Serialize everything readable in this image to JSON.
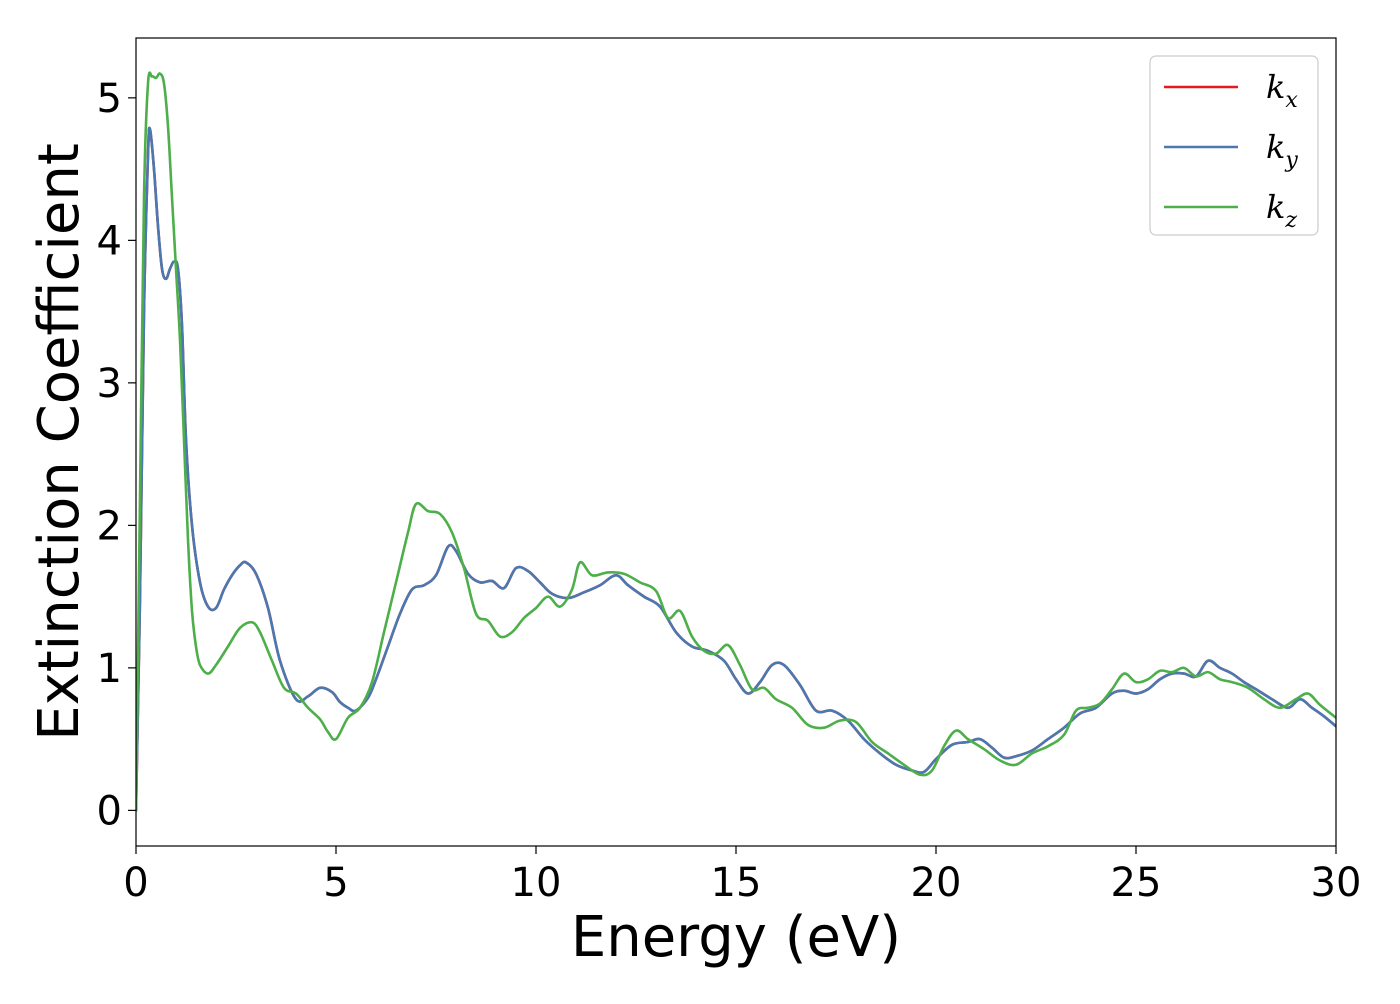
{
  "chart_data": {
    "type": "line",
    "title": "",
    "xlabel": "Energy (eV)",
    "ylabel": "Extinction Coefficient",
    "xlim": [
      0,
      30
    ],
    "ylim": [
      -0.25,
      5.42
    ],
    "xticks": [
      0,
      5,
      10,
      15,
      20,
      25,
      30
    ],
    "yticks": [
      0,
      1,
      2,
      3,
      4,
      5
    ],
    "grid": false,
    "legend_position": "top-right",
    "series": [
      {
        "name": "k_x",
        "label_main": "k",
        "label_sub": "x",
        "color": "#e41a1c",
        "x": [
          0,
          0.1,
          0.2,
          0.3,
          0.35,
          0.45,
          0.55,
          0.65,
          0.75,
          0.85,
          0.95,
          1.05,
          1.15,
          1.25,
          1.4,
          1.6,
          1.8,
          2.0,
          2.2,
          2.4,
          2.6,
          2.75,
          3.0,
          3.3,
          3.6,
          4.0,
          4.3,
          4.6,
          4.9,
          5.1,
          5.3,
          5.5,
          5.8,
          6.0,
          6.3,
          6.6,
          6.9,
          7.2,
          7.5,
          7.8,
          8.0,
          8.3,
          8.6,
          8.9,
          9.2,
          9.5,
          9.8,
          10.1,
          10.4,
          10.8,
          11.2,
          11.6,
          12.0,
          12.3,
          12.7,
          13.1,
          13.5,
          13.9,
          14.3,
          14.7,
          15.0,
          15.3,
          15.6,
          15.9,
          16.2,
          16.6,
          17.0,
          17.4,
          17.8,
          18.2,
          18.6,
          19.0,
          19.4,
          19.7,
          20.0,
          20.4,
          20.8,
          21.1,
          21.4,
          21.7,
          22.0,
          22.4,
          22.8,
          23.2,
          23.6,
          24.0,
          24.4,
          24.7,
          25.0,
          25.3,
          25.6,
          25.9,
          26.2,
          26.5,
          26.8,
          27.1,
          27.4,
          27.7,
          28.0,
          28.4,
          28.8,
          29.1,
          29.4,
          29.7,
          30.0
        ],
        "y": [
          0.0,
          1.5,
          3.5,
          4.6,
          4.78,
          4.5,
          4.1,
          3.8,
          3.73,
          3.8,
          3.85,
          3.8,
          3.4,
          2.6,
          2.0,
          1.6,
          1.43,
          1.42,
          1.55,
          1.65,
          1.72,
          1.74,
          1.66,
          1.42,
          1.05,
          0.78,
          0.8,
          0.86,
          0.83,
          0.76,
          0.72,
          0.7,
          0.79,
          0.92,
          1.15,
          1.38,
          1.55,
          1.58,
          1.65,
          1.85,
          1.82,
          1.66,
          1.6,
          1.61,
          1.56,
          1.7,
          1.68,
          1.6,
          1.52,
          1.49,
          1.53,
          1.58,
          1.65,
          1.58,
          1.5,
          1.43,
          1.25,
          1.15,
          1.12,
          1.05,
          0.92,
          0.82,
          0.9,
          1.02,
          1.02,
          0.88,
          0.7,
          0.7,
          0.63,
          0.5,
          0.4,
          0.32,
          0.28,
          0.27,
          0.36,
          0.46,
          0.48,
          0.5,
          0.44,
          0.37,
          0.38,
          0.42,
          0.5,
          0.58,
          0.68,
          0.72,
          0.82,
          0.84,
          0.82,
          0.85,
          0.92,
          0.96,
          0.96,
          0.94,
          1.05,
          1.0,
          0.96,
          0.9,
          0.85,
          0.78,
          0.72,
          0.78,
          0.72,
          0.66,
          0.59
        ]
      },
      {
        "name": "k_y",
        "label_main": "k",
        "label_sub": "y",
        "color": "#4a78b0",
        "x": [
          0,
          0.1,
          0.2,
          0.3,
          0.35,
          0.45,
          0.55,
          0.65,
          0.75,
          0.85,
          0.95,
          1.05,
          1.15,
          1.25,
          1.4,
          1.6,
          1.8,
          2.0,
          2.2,
          2.4,
          2.6,
          2.75,
          3.0,
          3.3,
          3.6,
          4.0,
          4.3,
          4.6,
          4.9,
          5.1,
          5.3,
          5.5,
          5.8,
          6.0,
          6.3,
          6.6,
          6.9,
          7.2,
          7.5,
          7.8,
          8.0,
          8.3,
          8.6,
          8.9,
          9.2,
          9.5,
          9.8,
          10.1,
          10.4,
          10.8,
          11.2,
          11.6,
          12.0,
          12.3,
          12.7,
          13.1,
          13.5,
          13.9,
          14.3,
          14.7,
          15.0,
          15.3,
          15.6,
          15.9,
          16.2,
          16.6,
          17.0,
          17.4,
          17.8,
          18.2,
          18.6,
          19.0,
          19.4,
          19.7,
          20.0,
          20.4,
          20.8,
          21.1,
          21.4,
          21.7,
          22.0,
          22.4,
          22.8,
          23.2,
          23.6,
          24.0,
          24.4,
          24.7,
          25.0,
          25.3,
          25.6,
          25.9,
          26.2,
          26.5,
          26.8,
          27.1,
          27.4,
          27.7,
          28.0,
          28.4,
          28.8,
          29.1,
          29.4,
          29.7,
          30.0
        ],
        "y": [
          0.0,
          1.5,
          3.5,
          4.6,
          4.78,
          4.5,
          4.1,
          3.8,
          3.73,
          3.8,
          3.85,
          3.8,
          3.4,
          2.6,
          2.0,
          1.6,
          1.43,
          1.42,
          1.55,
          1.65,
          1.72,
          1.74,
          1.66,
          1.42,
          1.05,
          0.78,
          0.8,
          0.86,
          0.83,
          0.76,
          0.72,
          0.7,
          0.79,
          0.92,
          1.15,
          1.38,
          1.55,
          1.58,
          1.65,
          1.85,
          1.82,
          1.66,
          1.6,
          1.61,
          1.56,
          1.7,
          1.68,
          1.6,
          1.52,
          1.49,
          1.53,
          1.58,
          1.65,
          1.58,
          1.5,
          1.43,
          1.25,
          1.15,
          1.12,
          1.05,
          0.92,
          0.82,
          0.9,
          1.02,
          1.02,
          0.88,
          0.7,
          0.7,
          0.63,
          0.5,
          0.4,
          0.32,
          0.28,
          0.27,
          0.36,
          0.46,
          0.48,
          0.5,
          0.44,
          0.37,
          0.38,
          0.42,
          0.5,
          0.58,
          0.68,
          0.72,
          0.82,
          0.84,
          0.82,
          0.85,
          0.92,
          0.96,
          0.96,
          0.94,
          1.05,
          1.0,
          0.96,
          0.9,
          0.85,
          0.78,
          0.72,
          0.78,
          0.72,
          0.66,
          0.59
        ]
      },
      {
        "name": "k_z",
        "label_main": "k",
        "label_sub": "z",
        "color": "#4daf4a",
        "x": [
          0,
          0.1,
          0.2,
          0.3,
          0.4,
          0.5,
          0.6,
          0.7,
          0.8,
          0.9,
          1.0,
          1.1,
          1.2,
          1.3,
          1.4,
          1.5,
          1.6,
          1.8,
          2.0,
          2.3,
          2.6,
          2.9,
          3.1,
          3.4,
          3.7,
          4.0,
          4.3,
          4.6,
          4.8,
          5.0,
          5.3,
          5.6,
          5.9,
          6.2,
          6.5,
          6.8,
          7.0,
          7.3,
          7.6,
          7.9,
          8.2,
          8.5,
          8.8,
          9.1,
          9.4,
          9.7,
          10.0,
          10.3,
          10.6,
          10.9,
          11.1,
          11.4,
          11.8,
          12.2,
          12.6,
          13.0,
          13.3,
          13.6,
          13.9,
          14.2,
          14.5,
          14.8,
          15.1,
          15.4,
          15.7,
          16.0,
          16.4,
          16.8,
          17.2,
          17.6,
          18.0,
          18.4,
          18.8,
          19.2,
          19.6,
          19.9,
          20.2,
          20.5,
          20.8,
          21.2,
          21.6,
          22.0,
          22.4,
          22.8,
          23.2,
          23.5,
          23.8,
          24.1,
          24.4,
          24.7,
          25.0,
          25.3,
          25.6,
          25.9,
          26.2,
          26.5,
          26.8,
          27.1,
          27.4,
          27.8,
          28.2,
          28.6,
          29.0,
          29.3,
          29.6,
          30.0
        ],
        "y": [
          0.0,
          2.2,
          4.3,
          5.1,
          5.15,
          5.14,
          5.17,
          5.1,
          4.8,
          4.3,
          3.8,
          3.3,
          2.6,
          1.9,
          1.4,
          1.15,
          1.02,
          0.96,
          1.02,
          1.15,
          1.28,
          1.32,
          1.25,
          1.05,
          0.86,
          0.82,
          0.72,
          0.64,
          0.55,
          0.5,
          0.65,
          0.72,
          0.9,
          1.25,
          1.6,
          1.95,
          2.15,
          2.1,
          2.08,
          1.95,
          1.7,
          1.38,
          1.33,
          1.22,
          1.25,
          1.35,
          1.42,
          1.5,
          1.43,
          1.55,
          1.74,
          1.65,
          1.67,
          1.66,
          1.6,
          1.54,
          1.35,
          1.4,
          1.22,
          1.12,
          1.1,
          1.16,
          1.02,
          0.85,
          0.86,
          0.78,
          0.72,
          0.6,
          0.58,
          0.63,
          0.62,
          0.48,
          0.4,
          0.32,
          0.25,
          0.28,
          0.45,
          0.56,
          0.5,
          0.43,
          0.35,
          0.32,
          0.4,
          0.45,
          0.53,
          0.7,
          0.72,
          0.75,
          0.85,
          0.96,
          0.9,
          0.92,
          0.98,
          0.97,
          1.0,
          0.94,
          0.97,
          0.92,
          0.9,
          0.86,
          0.78,
          0.72,
          0.78,
          0.82,
          0.74,
          0.65
        ]
      }
    ]
  }
}
